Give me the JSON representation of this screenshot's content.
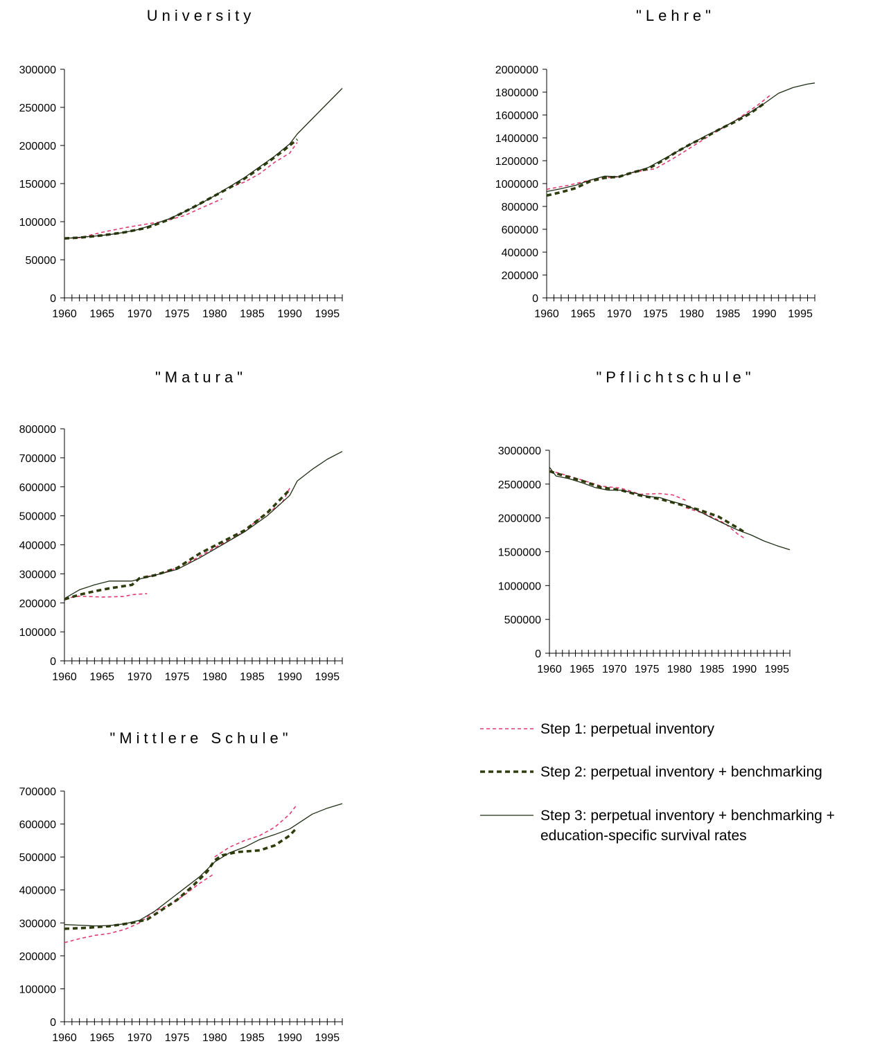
{
  "legend": [
    {
      "label": "Step 1: perpetual inventory",
      "color": "#e23a6e",
      "style": "dashed-thin"
    },
    {
      "label": "Step 2: perpetual inventory + benchmarking",
      "color": "#2e3d0b",
      "style": "dashed-thick"
    },
    {
      "label": "Step 3: perpetual inventory + benchmarking +",
      "label_line2": "education-specific survival rates",
      "color": "#1f2d12",
      "style": "solid"
    }
  ],
  "chart_data": [
    {
      "type": "line",
      "title": "University",
      "xlim": [
        1960,
        1997
      ],
      "x_ticks": [
        "1960",
        "1965",
        "1970",
        "1975",
        "1980",
        "1985",
        "1990",
        "1995"
      ],
      "ylim": [
        0,
        300000
      ],
      "y_ticks": [
        "0",
        "50000",
        "100000",
        "150000",
        "200000",
        "250000",
        "300000"
      ],
      "series": [
        {
          "name": "Step 1: perpetual inventory",
          "x": [
            1960,
            1962,
            1965,
            1968,
            1971,
            1973,
            1976,
            1978,
            1981
          ],
          "y": [
            78000,
            79000,
            86000,
            92000,
            97000,
            100000,
            108000,
            117000,
            130000
          ]
        },
        {
          "name": "Step 1: perpetual inventory",
          "x": [
            1982,
            1984,
            1986,
            1988,
            1990,
            1991
          ],
          "y": [
            145000,
            152000,
            163000,
            178000,
            190000,
            204000
          ]
        },
        {
          "name": "Step 2: perpetual inventory + benchmarking",
          "x": [
            1960,
            1962,
            1965,
            1968,
            1971,
            1974,
            1977,
            1980,
            1983,
            1986,
            1989,
            1991
          ],
          "y": [
            78000,
            79000,
            82000,
            86000,
            92000,
            103000,
            118000,
            134000,
            150000,
            170000,
            192000,
            208000
          ]
        },
        {
          "name": "Step 3: perpetual inventory + benchmarking + education-specific survival rates",
          "x": [
            1960,
            1962,
            1964,
            1966,
            1968,
            1970,
            1972,
            1974,
            1976,
            1978,
            1980,
            1982,
            1984,
            1986,
            1988,
            1990,
            1991,
            1993,
            1995,
            1997
          ],
          "y": [
            78000,
            79500,
            81000,
            83000,
            86000,
            90000,
            97000,
            104000,
            113000,
            123000,
            134000,
            146000,
            158000,
            172000,
            186000,
            202000,
            215000,
            235000,
            255000,
            275000
          ]
        }
      ]
    },
    {
      "type": "line",
      "title": "\"Lehre\"",
      "xlim": [
        1960,
        1997
      ],
      "x_ticks": [
        "1960",
        "1965",
        "1970",
        "1975",
        "1980",
        "1985",
        "1990",
        "1995"
      ],
      "ylim": [
        0,
        2000000
      ],
      "y_ticks": [
        "0",
        "200000",
        "400000",
        "600000",
        "800000",
        "1000000",
        "1200000",
        "1400000",
        "1600000",
        "1800000",
        "2000000"
      ],
      "series": [
        {
          "name": "Step 1: perpetual inventory",
          "x": [
            1960,
            1963,
            1966,
            1968,
            1970,
            1972,
            1975,
            1978,
            1980,
            1983,
            1986,
            1989,
            1991
          ],
          "y": [
            950000,
            985000,
            1030000,
            1050000,
            1060000,
            1100000,
            1130000,
            1240000,
            1320000,
            1440000,
            1550000,
            1680000,
            1780000
          ]
        },
        {
          "name": "Step 2: perpetual inventory + benchmarking",
          "x": [
            1960,
            1962,
            1964,
            1966,
            1968,
            1970,
            1972,
            1974,
            1976,
            1978,
            1980,
            1982,
            1984,
            1986,
            1988,
            1990
          ],
          "y": [
            895000,
            925000,
            960000,
            1020000,
            1050000,
            1060000,
            1100000,
            1130000,
            1200000,
            1280000,
            1350000,
            1410000,
            1480000,
            1540000,
            1610000,
            1700000
          ]
        },
        {
          "name": "Step 3: perpetual inventory + benchmarking + education-specific survival rates",
          "x": [
            1960,
            1962,
            1964,
            1966,
            1968,
            1970,
            1972,
            1974,
            1976,
            1978,
            1980,
            1982,
            1984,
            1986,
            1988,
            1990,
            1992,
            1994,
            1996,
            1997
          ],
          "y": [
            930000,
            955000,
            985000,
            1030000,
            1065000,
            1060000,
            1100000,
            1140000,
            1210000,
            1280000,
            1350000,
            1420000,
            1480000,
            1550000,
            1620000,
            1700000,
            1790000,
            1840000,
            1870000,
            1880000
          ]
        }
      ]
    },
    {
      "type": "line",
      "title": "\"Matura\"",
      "xlim": [
        1960,
        1997
      ],
      "x_ticks": [
        "1960",
        "1965",
        "1970",
        "1975",
        "1980",
        "1985",
        "1990",
        "1995"
      ],
      "ylim": [
        0,
        800000
      ],
      "y_ticks": [
        "0",
        "100000",
        "200000",
        "300000",
        "400000",
        "500000",
        "600000",
        "700000",
        "800000"
      ],
      "series": [
        {
          "name": "Step 1: perpetual inventory",
          "x": [
            1960,
            1962,
            1965,
            1968,
            1969,
            1971
          ],
          "y": [
            215000,
            223000,
            220000,
            222000,
            228000,
            232000
          ]
        },
        {
          "name": "Step 1: perpetual inventory",
          "x": [
            1971,
            1974,
            1977,
            1980,
            1983,
            1986,
            1989,
            1990
          ],
          "y": [
            290000,
            310000,
            345000,
            390000,
            430000,
            490000,
            545000,
            595000
          ]
        },
        {
          "name": "Step 2: perpetual inventory + benchmarking",
          "x": [
            1960,
            1962,
            1964,
            1966,
            1969,
            1970,
            1972,
            1975,
            1978,
            1981,
            1984,
            1987,
            1990
          ],
          "y": [
            212000,
            228000,
            240000,
            250000,
            262000,
            285000,
            295000,
            320000,
            370000,
            410000,
            450000,
            510000,
            590000
          ]
        },
        {
          "name": "Step 3: perpetual inventory + benchmarking + education-specific survival rates",
          "x": [
            1960,
            1962,
            1964,
            1966,
            1969,
            1970,
            1972,
            1975,
            1978,
            1981,
            1984,
            1987,
            1990,
            1991,
            1993,
            1995,
            1997
          ],
          "y": [
            215000,
            245000,
            262000,
            275000,
            275000,
            282000,
            295000,
            315000,
            355000,
            400000,
            445000,
            500000,
            570000,
            620000,
            660000,
            695000,
            722000
          ]
        }
      ]
    },
    {
      "type": "line",
      "title": "\"Pflichtschule\"",
      "xlim": [
        1960,
        1997
      ],
      "x_ticks": [
        "1960",
        "1965",
        "1970",
        "1975",
        "1980",
        "1985",
        "1990",
        "1995"
      ],
      "ylim": [
        0,
        3000000
      ],
      "y_ticks": [
        "0",
        "500000",
        "1000000",
        "1500000",
        "2000000",
        "2500000",
        "3000000"
      ],
      "series": [
        {
          "name": "Step 1: perpetual inventory",
          "x": [
            1960,
            1963,
            1966,
            1968,
            1971,
            1974,
            1977,
            1979,
            1981
          ],
          "y": [
            2700000,
            2620000,
            2530000,
            2470000,
            2440000,
            2350000,
            2360000,
            2340000,
            2260000
          ]
        },
        {
          "name": "Step 1: perpetual inventory",
          "x": [
            1981,
            1984,
            1987,
            1989,
            1990
          ],
          "y": [
            2150000,
            2060000,
            1920000,
            1760000,
            1700000
          ]
        },
        {
          "name": "Step 2: perpetual inventory + benchmarking",
          "x": [
            1960,
            1962,
            1965,
            1968,
            1971,
            1974,
            1977,
            1980,
            1983,
            1986,
            1989,
            1990
          ],
          "y": [
            2690000,
            2630000,
            2550000,
            2450000,
            2410000,
            2330000,
            2280000,
            2200000,
            2120000,
            2020000,
            1850000,
            1790000
          ]
        },
        {
          "name": "Step 3: perpetual inventory + benchmarking + education-specific survival rates",
          "x": [
            1960,
            1961,
            1963,
            1965,
            1967,
            1969,
            1971,
            1973,
            1975,
            1977,
            1979,
            1981,
            1983,
            1985,
            1987,
            1989,
            1991,
            1993,
            1995,
            1997
          ],
          "y": [
            2750000,
            2620000,
            2580000,
            2520000,
            2450000,
            2410000,
            2410000,
            2370000,
            2320000,
            2300000,
            2240000,
            2190000,
            2100000,
            2000000,
            1910000,
            1820000,
            1750000,
            1660000,
            1590000,
            1530000
          ]
        }
      ]
    },
    {
      "type": "line",
      "title": "\"Mittlere Schule\"",
      "xlim": [
        1960,
        1997
      ],
      "x_ticks": [
        "1960",
        "1965",
        "1970",
        "1975",
        "1980",
        "1985",
        "1990",
        "1995"
      ],
      "ylim": [
        0,
        700000
      ],
      "y_ticks": [
        "0",
        "100000",
        "200000",
        "300000",
        "400000",
        "500000",
        "600000",
        "700000"
      ],
      "series": [
        {
          "name": "Step 1: perpetual inventory",
          "x": [
            1960,
            1962,
            1964,
            1966,
            1968,
            1970,
            1972,
            1974,
            1976,
            1978,
            1980
          ],
          "y": [
            240000,
            252000,
            262000,
            268000,
            280000,
            300000,
            335000,
            355000,
            385000,
            420000,
            450000
          ]
        },
        {
          "name": "Step 1: perpetual inventory",
          "x": [
            1980,
            1982,
            1984,
            1986,
            1988,
            1990,
            1991
          ],
          "y": [
            500000,
            530000,
            550000,
            565000,
            590000,
            630000,
            660000
          ]
        },
        {
          "name": "Step 2: perpetual inventory + benchmarking",
          "x": [
            1960,
            1963,
            1966,
            1969,
            1971,
            1973,
            1975,
            1977,
            1979,
            1980,
            1981,
            1983,
            1986,
            1988,
            1990,
            1991
          ],
          "y": [
            282000,
            285000,
            290000,
            300000,
            310000,
            340000,
            370000,
            410000,
            455000,
            490000,
            505000,
            515000,
            520000,
            535000,
            565000,
            590000
          ]
        },
        {
          "name": "Step 3: perpetual inventory + benchmarking + education-specific survival rates",
          "x": [
            1960,
            1962,
            1964,
            1966,
            1968,
            1970,
            1972,
            1974,
            1976,
            1978,
            1980,
            1982,
            1984,
            1986,
            1988,
            1990,
            1991,
            1993,
            1995,
            1997
          ],
          "y": [
            295000,
            293000,
            291000,
            292000,
            297000,
            308000,
            335000,
            370000,
            405000,
            440000,
            485000,
            513000,
            530000,
            553000,
            568000,
            585000,
            600000,
            630000,
            648000,
            662000
          ]
        }
      ]
    }
  ]
}
